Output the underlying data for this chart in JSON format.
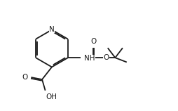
{
  "bg_color": "#ffffff",
  "line_color": "#1a1a1a",
  "line_width": 1.3,
  "font_size": 7.5,
  "figsize": [
    2.54,
    1.58
  ],
  "dpi": 100,
  "xlim": [
    0,
    10
  ],
  "ylim": [
    0,
    6.2
  ]
}
